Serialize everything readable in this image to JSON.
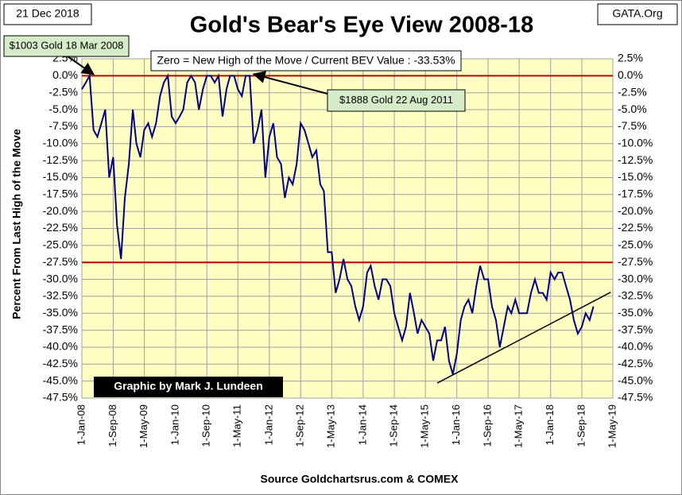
{
  "chart_data": {
    "type": "line",
    "title": "Gold's Bear's Eye View 2008-18",
    "date_label": "21 Dec 2018",
    "source_tag": "GATA.Org",
    "subtitle": "Zero = New High of the Move / Current  BEV Value : -33.53%",
    "credit": "Graphic by Mark J. Lundeen",
    "x_label": "Source Goldchartsrus.com & COMEX",
    "y_label": "Percent  From Last High of the Move",
    "annotations": [
      {
        "text": "$1003 Gold 18 Mar 2008",
        "x": "2008-03-18",
        "y": 0
      },
      {
        "text": "$1888 Gold 22 Aug 2011",
        "x": "2011-08-22",
        "y": 0
      }
    ],
    "grid": true,
    "plot_background": "#ffffc4",
    "reference_lines": {
      "color": "#c00000",
      "values": [
        0,
        -27.5
      ]
    },
    "trend_line": {
      "color": "#000000",
      "x": [
        "2015-08-01",
        "2019-04-15"
      ],
      "y": [
        -45.3,
        -31.9
      ]
    },
    "xlim": [
      "2008-01-01",
      "2019-05-01"
    ],
    "xticks": [
      {
        "value": "2008-01-01",
        "label": "1-Jan-08"
      },
      {
        "value": "2008-09-01",
        "label": "1-Sep-08"
      },
      {
        "value": "2009-05-01",
        "label": "1-May-09"
      },
      {
        "value": "2010-01-01",
        "label": "1-Jan-10"
      },
      {
        "value": "2010-09-01",
        "label": "1-Sep-10"
      },
      {
        "value": "2011-05-01",
        "label": "1-May-11"
      },
      {
        "value": "2012-01-01",
        "label": "1-Jan-12"
      },
      {
        "value": "2012-09-01",
        "label": "1-Sep-12"
      },
      {
        "value": "2013-05-01",
        "label": "1-May-13"
      },
      {
        "value": "2014-01-01",
        "label": "1-Jan-14"
      },
      {
        "value": "2014-09-01",
        "label": "1-Sep-14"
      },
      {
        "value": "2015-05-01",
        "label": "1-May-15"
      },
      {
        "value": "2016-01-01",
        "label": "1-Jan-16"
      },
      {
        "value": "2016-09-01",
        "label": "1-Sep-16"
      },
      {
        "value": "2017-05-01",
        "label": "1-May-17"
      },
      {
        "value": "2018-01-01",
        "label": "1-Jan-18"
      },
      {
        "value": "2018-09-01",
        "label": "1-Sep-18"
      },
      {
        "value": "2019-05-01",
        "label": "1-May-19"
      }
    ],
    "ylim": [
      -47.5,
      2.5
    ],
    "yticks": [
      {
        "value": 2.5,
        "label": "2.5%"
      },
      {
        "value": 0,
        "label": "0.0%"
      },
      {
        "value": -2.5,
        "label": "-2.5%"
      },
      {
        "value": -5,
        "label": "-5.0%"
      },
      {
        "value": -7.5,
        "label": "-7.5%"
      },
      {
        "value": -10,
        "label": "-10.0%"
      },
      {
        "value": -12.5,
        "label": "-12.5%"
      },
      {
        "value": -15,
        "label": "-15.0%"
      },
      {
        "value": -17.5,
        "label": "-17.5%"
      },
      {
        "value": -20,
        "label": "-20.0%"
      },
      {
        "value": -22.5,
        "label": "-22.5%"
      },
      {
        "value": -25,
        "label": "-25.0%"
      },
      {
        "value": -27.5,
        "label": "-27.5%"
      },
      {
        "value": -30,
        "label": "-30.0%"
      },
      {
        "value": -32.5,
        "label": "-32.5%"
      },
      {
        "value": -35,
        "label": "-35.0%"
      },
      {
        "value": -37.5,
        "label": "-37.5%"
      },
      {
        "value": -40,
        "label": "-40.0%"
      },
      {
        "value": -42.5,
        "label": "-42.5%"
      },
      {
        "value": -45,
        "label": "-45.0%"
      },
      {
        "value": -47.5,
        "label": "-47.5%"
      }
    ],
    "x": [
      "2008-01-01",
      "2008-02-01",
      "2008-03-01",
      "2008-04-01",
      "2008-05-01",
      "2008-06-01",
      "2008-07-01",
      "2008-08-01",
      "2008-09-01",
      "2008-10-01",
      "2008-11-01",
      "2008-12-01",
      "2009-01-01",
      "2009-02-01",
      "2009-03-01",
      "2009-04-01",
      "2009-05-01",
      "2009-06-01",
      "2009-07-01",
      "2009-08-01",
      "2009-09-01",
      "2009-10-01",
      "2009-11-01",
      "2009-12-01",
      "2010-01-01",
      "2010-02-01",
      "2010-03-01",
      "2010-04-01",
      "2010-05-01",
      "2010-06-01",
      "2010-07-01",
      "2010-08-01",
      "2010-09-01",
      "2010-10-01",
      "2010-11-01",
      "2010-12-01",
      "2011-01-01",
      "2011-02-01",
      "2011-03-01",
      "2011-04-01",
      "2011-05-01",
      "2011-06-01",
      "2011-07-01",
      "2011-08-01",
      "2011-09-01",
      "2011-10-01",
      "2011-11-01",
      "2011-12-01",
      "2012-01-01",
      "2012-02-01",
      "2012-03-01",
      "2012-04-01",
      "2012-05-01",
      "2012-06-01",
      "2012-07-01",
      "2012-08-01",
      "2012-09-01",
      "2012-10-01",
      "2012-11-01",
      "2012-12-01",
      "2013-01-01",
      "2013-02-01",
      "2013-03-01",
      "2013-04-01",
      "2013-05-01",
      "2013-06-01",
      "2013-07-01",
      "2013-08-01",
      "2013-09-01",
      "2013-10-01",
      "2013-11-01",
      "2013-12-01",
      "2014-01-01",
      "2014-02-01",
      "2014-03-01",
      "2014-04-01",
      "2014-05-01",
      "2014-06-01",
      "2014-07-01",
      "2014-08-01",
      "2014-09-01",
      "2014-10-01",
      "2014-11-01",
      "2014-12-01",
      "2015-01-01",
      "2015-02-01",
      "2015-03-01",
      "2015-04-01",
      "2015-05-01",
      "2015-06-01",
      "2015-07-01",
      "2015-08-01",
      "2015-09-01",
      "2015-10-01",
      "2015-11-01",
      "2015-12-01",
      "2016-01-01",
      "2016-02-01",
      "2016-03-01",
      "2016-04-01",
      "2016-05-01",
      "2016-06-01",
      "2016-07-01",
      "2016-08-01",
      "2016-09-01",
      "2016-10-01",
      "2016-11-01",
      "2016-12-01",
      "2017-01-01",
      "2017-02-01",
      "2017-03-01",
      "2017-04-01",
      "2017-05-01",
      "2017-06-01",
      "2017-07-01",
      "2017-08-01",
      "2017-09-01",
      "2017-10-01",
      "2017-11-01",
      "2017-12-01",
      "2018-01-01",
      "2018-02-01",
      "2018-03-01",
      "2018-04-01",
      "2018-05-01",
      "2018-06-01",
      "2018-07-01",
      "2018-08-01",
      "2018-09-01",
      "2018-10-01",
      "2018-11-01",
      "2018-12-01"
    ],
    "series": [
      {
        "name": "BEV",
        "color": "#000080",
        "values": [
          -2,
          -1,
          0,
          -8,
          -9,
          -7,
          -5,
          -15,
          -12,
          -22,
          -27,
          -18,
          -13,
          -5,
          -10,
          -12,
          -8,
          -7,
          -9,
          -7,
          -3,
          -1,
          0,
          -6,
          -7,
          -6,
          -5,
          -1,
          0,
          -1,
          -5,
          -2,
          0,
          0,
          -1,
          0,
          -6,
          -2,
          0,
          0,
          -2,
          -3,
          0,
          0,
          -10,
          -8,
          -5,
          -15,
          -9,
          -7,
          -12,
          -13,
          -18,
          -15,
          -16,
          -13,
          -7,
          -8,
          -10,
          -12,
          -11,
          -16,
          -17,
          -26,
          -26,
          -32,
          -30,
          -27,
          -30,
          -31,
          -34,
          -36,
          -34,
          -29,
          -28,
          -31,
          -33,
          -30,
          -30,
          -31,
          -35,
          -37,
          -39,
          -37,
          -32,
          -35,
          -38,
          -36,
          -37,
          -38,
          -42,
          -39,
          -39,
          -37,
          -42,
          -44,
          -41,
          -36,
          -34,
          -33,
          -35,
          -31,
          -28,
          -30,
          -30,
          -34,
          -36,
          -40,
          -37,
          -34,
          -35,
          -33,
          -35,
          -35,
          -35,
          -32,
          -30,
          -32,
          -32,
          -33,
          -29,
          -30,
          -29,
          -29,
          -31,
          -33,
          -36,
          -38,
          -37,
          -35,
          -36,
          -34
        ]
      }
    ]
  }
}
